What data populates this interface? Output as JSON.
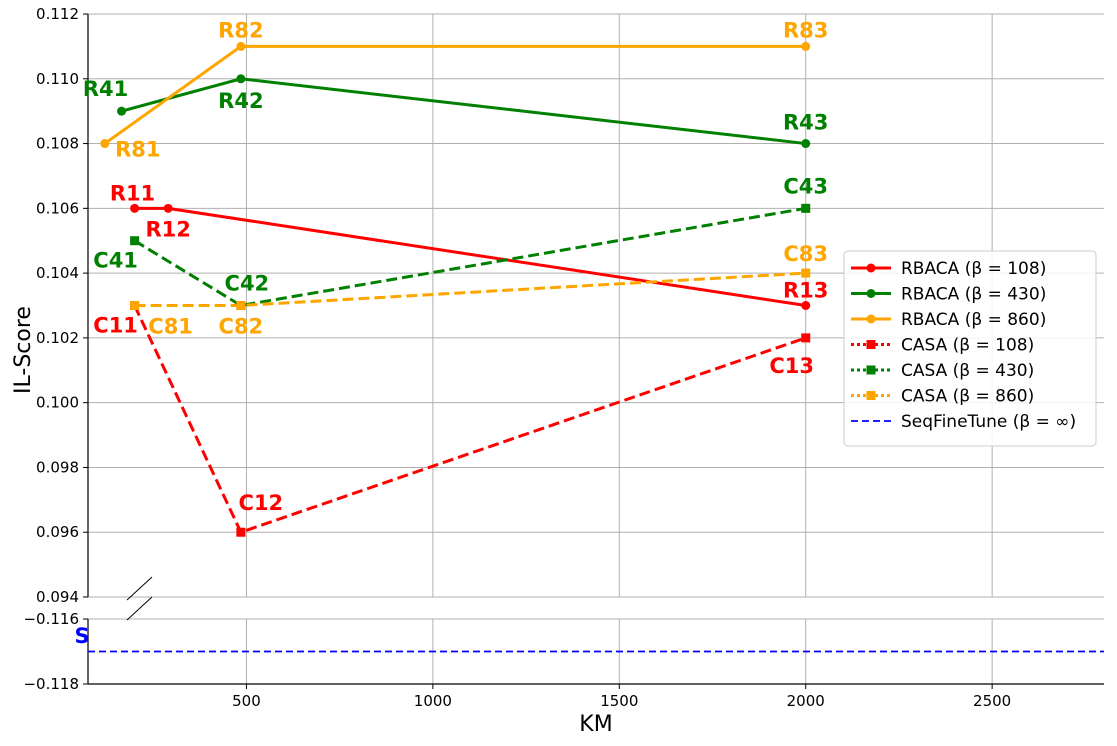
{
  "chart_data": {
    "type": "line",
    "title": "",
    "xlabel": "KM",
    "ylabel": "IL-Score",
    "grid": true,
    "legend_position": "center-right",
    "xlim": [
      75,
      2800
    ],
    "x_ticks": [
      500,
      1000,
      1500,
      2000,
      2500
    ],
    "ylim_upper": [
      0.094,
      0.112
    ],
    "y_ticks_upper": [
      0.094,
      0.096,
      0.098,
      0.1,
      0.102,
      0.104,
      0.106,
      0.108,
      0.11,
      0.112
    ],
    "ylim_lower": [
      -0.118,
      -0.1153
    ],
    "y_ticks_lower": [
      -0.118,
      -0.116
    ],
    "axis_break": true,
    "series": [
      {
        "name": "RBACA (β = 108)",
        "color": "#ff0000",
        "linestyle": "solid",
        "marker": "circle",
        "x": [
          200,
          290,
          2000
        ],
        "y": [
          0.106,
          0.106,
          0.103
        ],
        "labels": [
          "R11",
          "R12",
          "R13"
        ]
      },
      {
        "name": "RBACA (β = 430)",
        "color": "#008000",
        "linestyle": "solid",
        "marker": "circle",
        "x": [
          165,
          485,
          2000
        ],
        "y": [
          0.109,
          0.11,
          0.108
        ],
        "labels": [
          "R41",
          "R42",
          "R43"
        ]
      },
      {
        "name": "RBACA (β = 860)",
        "color": "#ffa500",
        "linestyle": "solid",
        "marker": "circle",
        "x": [
          120,
          485,
          2000
        ],
        "y": [
          0.108,
          0.111,
          0.111
        ],
        "labels": [
          "R81",
          "R82",
          "R83"
        ]
      },
      {
        "name": "CASA (β = 108)",
        "color": "#ff0000",
        "linestyle": "dashed",
        "legend_linestyle": "dotted",
        "marker": "square",
        "x": [
          200,
          485,
          2000
        ],
        "y": [
          0.103,
          0.096,
          0.102
        ],
        "labels": [
          "C11",
          "C12",
          "C13"
        ]
      },
      {
        "name": "CASA (β = 430)",
        "color": "#008000",
        "linestyle": "dashed",
        "legend_linestyle": "dotted",
        "marker": "square",
        "x": [
          200,
          485,
          2000
        ],
        "y": [
          0.105,
          0.103,
          0.106
        ],
        "labels": [
          "C41",
          "C42",
          "C43"
        ]
      },
      {
        "name": "CASA (β = 860)",
        "color": "#ffa500",
        "linestyle": "dashed",
        "legend_linestyle": "dotted",
        "marker": "square",
        "x": [
          200,
          485,
          2000
        ],
        "y": [
          0.103,
          0.103,
          0.104
        ],
        "labels": [
          "C81",
          "C82",
          "C83"
        ]
      },
      {
        "name": "SeqFineTune (β = ∞)",
        "color": "#0000ff",
        "linestyle": "dashed",
        "marker": "none",
        "x": [
          75,
          2800
        ],
        "y": [
          -0.117,
          -0.117
        ],
        "labels": []
      }
    ],
    "annotations": [
      {
        "text": "S",
        "x": 145,
        "y": -0.1163,
        "color": "#0000ff"
      }
    ]
  }
}
